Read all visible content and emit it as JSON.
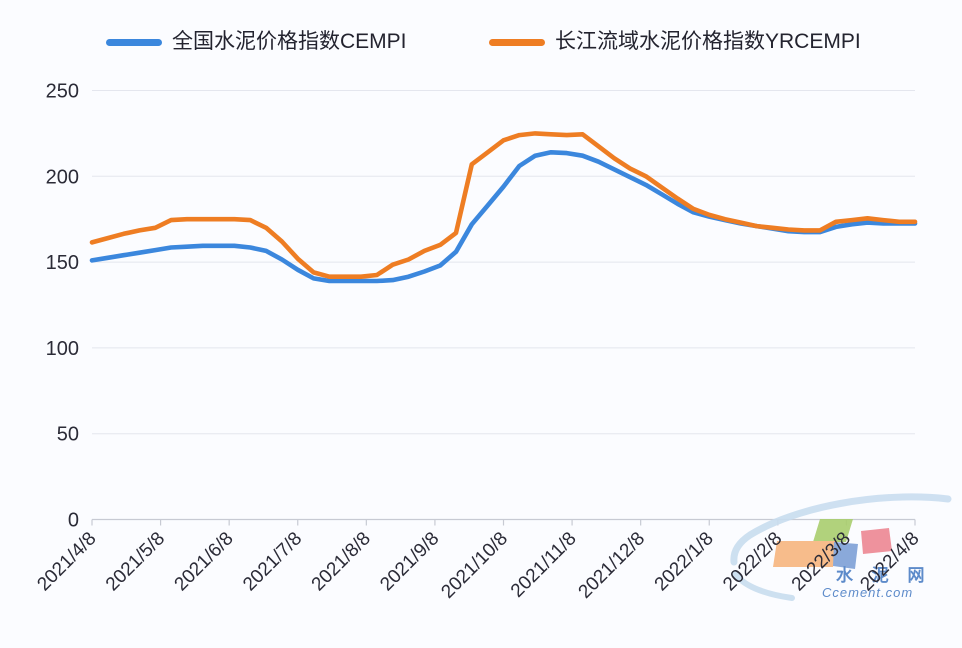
{
  "background": "#fbfcff",
  "legend": {
    "items": [
      {
        "id": "cempi",
        "label": "全国水泥价格指数CEMPI",
        "color": "#3b87dd"
      },
      {
        "id": "yrcempi",
        "label": "长江流域水泥价格指数YRCEMPI",
        "color": "#ee7d23"
      }
    ]
  },
  "chart_data": {
    "type": "line",
    "title": "",
    "xlabel": "",
    "ylabel": "",
    "grid": true,
    "legend_position": "top",
    "ylim": [
      0,
      250
    ],
    "y_ticks": [
      0,
      50,
      100,
      150,
      200,
      250
    ],
    "x_tick_labels": [
      "2021/4/8",
      "2021/5/8",
      "2021/6/8",
      "2021/7/8",
      "2021/8/8",
      "2021/9/8",
      "2021/10/8",
      "2021/11/8",
      "2021/12/8",
      "2022/1/8",
      "2022/2/8",
      "2022/3/8",
      "2022/4/8"
    ],
    "x_note": "weekly samples, index 0-52 spanning 2021/4/8 to 2022/4/8",
    "series": [
      {
        "id": "cempi",
        "name": "全国水泥价格指数CEMPI",
        "color": "#3b87dd",
        "values": [
          151,
          152.5,
          154,
          155.5,
          157,
          158.5,
          159,
          159.5,
          159.5,
          159.5,
          158.5,
          156.5,
          151.5,
          145.5,
          140.5,
          139,
          139,
          139,
          139,
          139.5,
          141.5,
          144.5,
          148,
          156,
          172,
          183,
          194,
          206,
          212,
          214,
          213.5,
          212,
          208.5,
          204,
          199.5,
          195,
          189.5,
          184,
          179,
          176.5,
          174.5,
          172.5,
          171,
          169.5,
          168,
          167.5,
          167.5,
          170.5,
          172,
          173,
          172.5,
          172.5,
          172.5
        ]
      },
      {
        "id": "yrcempi",
        "name": "长江流域水泥价格指数YRCEMPI",
        "color": "#ee7d23",
        "values": [
          161.5,
          164,
          166.5,
          168.5,
          170,
          174.5,
          175,
          175,
          175,
          175,
          174.5,
          170,
          162,
          152,
          144,
          141.5,
          141.5,
          141.5,
          142.5,
          148.5,
          151.5,
          156.5,
          160,
          167,
          207,
          214,
          221,
          224,
          225,
          224.5,
          224,
          224.5,
          217.5,
          210.5,
          204.5,
          200,
          193.5,
          187,
          181,
          177.5,
          175,
          173,
          171,
          170,
          169,
          168.5,
          168.5,
          173.5,
          174.5,
          175.5,
          174.5,
          173.5,
          173.5
        ]
      }
    ]
  },
  "watermark": {
    "brand_cn": "水 泥 网",
    "brand_url": "Ccement.com",
    "colors": {
      "swoosh": "#c9ddef",
      "green": "#aace6e",
      "orange": "#f7b67f",
      "blue": "#7ea1d6",
      "red": "#ed8793",
      "text": "#4d7fc5"
    }
  }
}
